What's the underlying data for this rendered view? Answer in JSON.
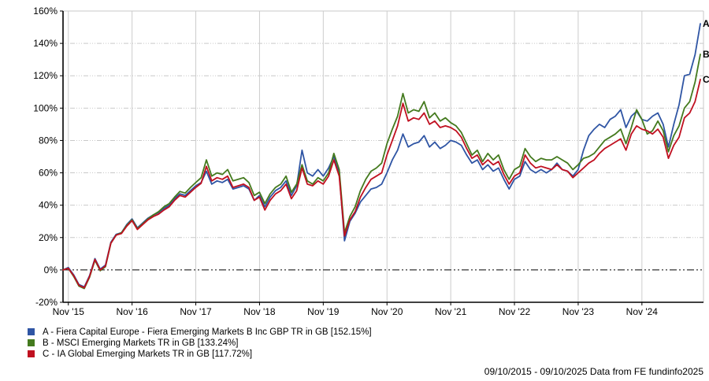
{
  "chart": {
    "footer_text": "09/10/2015 - 09/10/2025 Data from FE fundinfo2025"
  },
  "chart_data": {
    "type": "line",
    "title": "",
    "xlabel": "",
    "ylabel": "",
    "x_start_date": "09/10/2015",
    "x_end_date": "09/10/2025",
    "x_unit": "months",
    "ylim": [
      -20,
      160
    ],
    "y_tick_step": 20,
    "y_tick_suffix": "%",
    "grid": true,
    "zero_line": true,
    "legend_position": "bottom-left",
    "axis_color": "#000000",
    "gridline_color": "#c9c9c9",
    "x_tick_labels": [
      "Nov '15",
      "Nov '16",
      "Nov '17",
      "Nov '18",
      "Nov '19",
      "Nov '20",
      "Nov '21",
      "Nov '22",
      "Nov '23",
      "Nov '24"
    ],
    "x_tick_indices": [
      1,
      13,
      25,
      37,
      49,
      61,
      73,
      85,
      97,
      109
    ],
    "series": [
      {
        "id": "A",
        "name": "Fiera Capital Europe - Fiera Emerging Markets B Inc GBP TR in GB",
        "label": "A - Fiera Capital Europe - Fiera Emerging Markets B Inc GBP TR in GB [152.15%]",
        "final_value_pct": 152.15,
        "color": "#2F55A4",
        "values": [
          0,
          1.5,
          -3,
          -9,
          -10.5,
          -3.5,
          7,
          0.5,
          3,
          17,
          22,
          23,
          28,
          31.5,
          26,
          29,
          32,
          34,
          35.5,
          38,
          40,
          44,
          47,
          46,
          49,
          52,
          54,
          61,
          53,
          55,
          54,
          56,
          50,
          51,
          52,
          50,
          43,
          46,
          39,
          45,
          49,
          51,
          55,
          46,
          52,
          74,
          60,
          58,
          62,
          58,
          63,
          70,
          60,
          18,
          30,
          35,
          42,
          46,
          50,
          51,
          53,
          60,
          68,
          74,
          84,
          76,
          78,
          79,
          83,
          76,
          79,
          75,
          77,
          80,
          79,
          77,
          71,
          66,
          68,
          62,
          65,
          61,
          63,
          56,
          50,
          56,
          58,
          67,
          62,
          60,
          62,
          60,
          62,
          66,
          62,
          61,
          58,
          62,
          74,
          83,
          87,
          90,
          88,
          93,
          95,
          99,
          88,
          95,
          98,
          93,
          92,
          95,
          97,
          90,
          76,
          90,
          102,
          120,
          121,
          133,
          152.15
        ]
      },
      {
        "id": "B",
        "name": "MSCI Emerging Markets TR in GB",
        "label": "B - MSCI Emerging Markets TR in GB [133.24%]",
        "final_value_pct": 133.24,
        "color": "#447A1E",
        "values": [
          0,
          1,
          -4,
          -10,
          -11.5,
          -4.5,
          6,
          -0.5,
          2,
          16.5,
          21.5,
          23,
          27.5,
          31,
          25.5,
          28.5,
          31.5,
          34,
          36,
          39,
          41,
          45,
          48.5,
          47.5,
          51,
          54,
          57,
          68,
          58,
          60,
          59,
          62,
          55,
          56,
          57,
          54,
          46,
          48,
          41,
          47,
          51,
          53,
          58,
          48,
          53,
          65,
          55,
          53,
          57,
          55,
          60,
          72,
          62,
          23,
          33,
          39,
          49,
          56,
          61,
          63,
          66,
          78,
          87,
          95,
          109,
          97,
          99,
          98,
          104,
          94,
          97,
          92,
          94,
          91,
          89,
          85,
          78,
          71,
          74,
          67,
          72,
          68,
          71,
          62,
          56,
          62,
          64,
          75,
          70,
          67,
          69,
          68,
          68,
          70,
          68,
          66,
          62,
          65,
          69,
          70,
          72,
          76,
          80,
          82,
          84,
          87,
          78,
          88,
          99,
          93,
          84,
          86,
          92,
          86,
          73,
          83,
          89,
          100,
          104,
          116,
          133.24
        ]
      },
      {
        "id": "C",
        "name": "IA Global Emerging Markets TR in GB",
        "label": "C - IA Global Emerging Markets TR in GB [117.72%]",
        "final_value_pct": 117.72,
        "color": "#C01020",
        "values": [
          0,
          1,
          -3.5,
          -9.5,
          -11,
          -4,
          6.5,
          0,
          2.5,
          16.5,
          21.5,
          22.5,
          27,
          30.5,
          25,
          28,
          31,
          33,
          34.5,
          37,
          39,
          43,
          46,
          45,
          48,
          51,
          53.5,
          64,
          55,
          57,
          56,
          58,
          51,
          52,
          53,
          51,
          43,
          45,
          37,
          43,
          47,
          49,
          53,
          44,
          49,
          63,
          53,
          52,
          55,
          53,
          58,
          68,
          58,
          21,
          31,
          36,
          45,
          51,
          56,
          58,
          60,
          71,
          80,
          89,
          103,
          92,
          94,
          93,
          97,
          90,
          92,
          88,
          89,
          88,
          86,
          82,
          75,
          69,
          71,
          65,
          68,
          65,
          67,
          59,
          53,
          58,
          60,
          71,
          66,
          63,
          64,
          63,
          62,
          65,
          62,
          61,
          57,
          60,
          63,
          66,
          68,
          72,
          75,
          77,
          79,
          81,
          74,
          84,
          89,
          87,
          86,
          84,
          87,
          82,
          69,
          77,
          82,
          94,
          97,
          104,
          117.72
        ]
      }
    ]
  }
}
